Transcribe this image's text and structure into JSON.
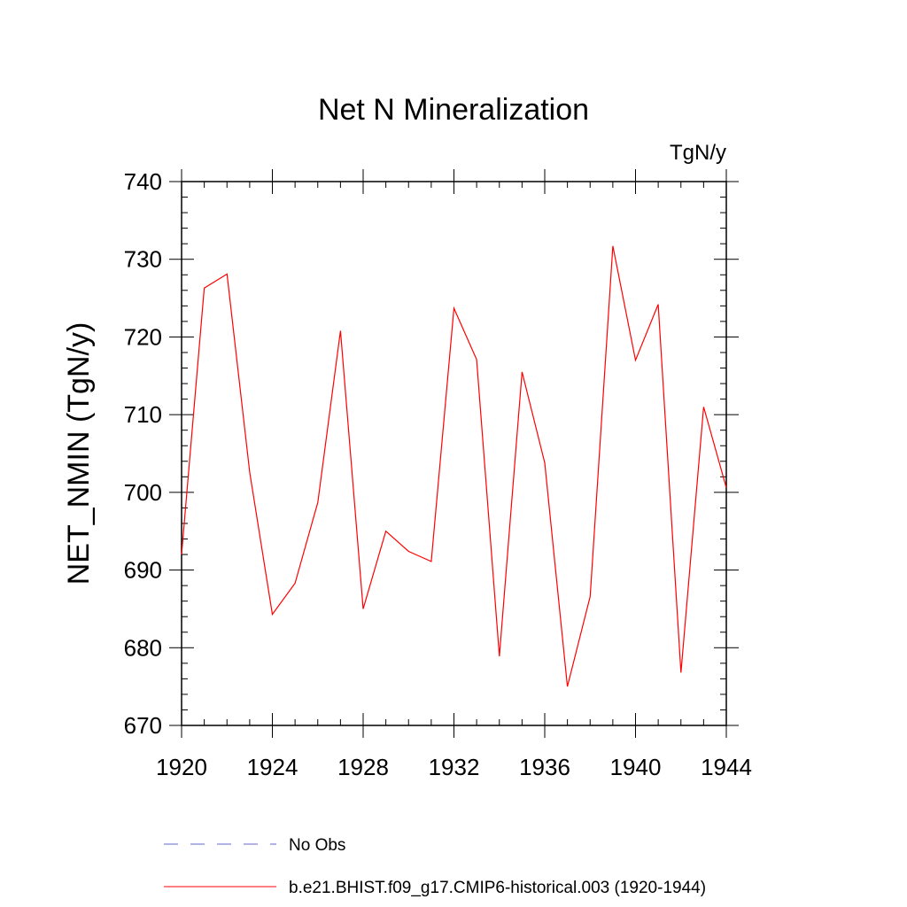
{
  "chart_data": {
    "type": "line",
    "title": "Net N Mineralization",
    "units": "TgN/y",
    "xlabel": "",
    "ylabel": "NET_NMIN  (TgN/y)",
    "xlim": [
      1920,
      1944
    ],
    "ylim": [
      670,
      740
    ],
    "x_ticks": [
      1920,
      1924,
      1928,
      1932,
      1936,
      1940,
      1944
    ],
    "y_ticks": [
      670,
      680,
      690,
      700,
      710,
      720,
      730,
      740
    ],
    "grid": false,
    "legend_position": "bottom",
    "series": [
      {
        "name": "b.e21.BHIST.f09_g17.CMIP6-historical.003 (1920-1944)",
        "color": "#ff0000",
        "style": "solid",
        "x": [
          1920,
          1921,
          1922,
          1923,
          1924,
          1925,
          1926,
          1927,
          1928,
          1929,
          1930,
          1931,
          1932,
          1933,
          1934,
          1935,
          1936,
          1937,
          1938,
          1939,
          1940,
          1941,
          1942,
          1943,
          1944
        ],
        "y": [
          692.0,
          726.3,
          728.1,
          702.6,
          684.3,
          688.3,
          698.7,
          720.8,
          685.0,
          695.0,
          692.4,
          691.1,
          723.7,
          717.1,
          678.9,
          715.5,
          703.8,
          675.0,
          686.6,
          731.7,
          717.0,
          724.2,
          676.8,
          711.0,
          700.6
        ]
      },
      {
        "name": "No Obs",
        "color": "#6666cc",
        "style": "dashed",
        "x": [],
        "y": []
      }
    ]
  }
}
